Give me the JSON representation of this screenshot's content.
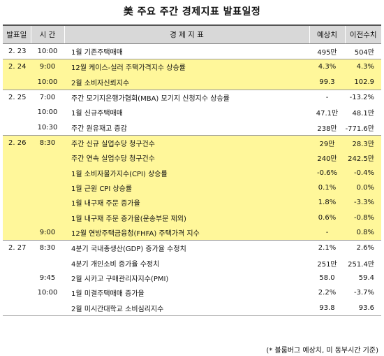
{
  "title": "美 주요 주간 경제지표 발표일정",
  "headers": {
    "date": "발표일",
    "time": "시 간",
    "indicator": "경 제 지 표",
    "expected": "예상치",
    "previous": "이전수치"
  },
  "rows": [
    {
      "date": "2. 23",
      "time": "10:00",
      "indicator": "1월 기존주택매매",
      "expected": "495만",
      "previous": "504만"
    },
    {
      "date": "2. 24",
      "time": "9:00",
      "indicator": "12월 케이스-실러 주택가격지수 상승률",
      "expected": "4.3%",
      "previous": "4.3%"
    },
    {
      "date": "",
      "time": "10:00",
      "indicator": "2월 소비자신뢰지수",
      "expected": "99.3",
      "previous": "102.9"
    },
    {
      "date": "2. 25",
      "time": "7:00",
      "indicator": "주간 모기지은행가협회(MBA) 모기지 신청지수 상승률",
      "expected": "-",
      "previous": "-13.2%"
    },
    {
      "date": "",
      "time": "10:00",
      "indicator": "1월 신규주택매매",
      "expected": "47.1만",
      "previous": "48.1만"
    },
    {
      "date": "",
      "time": "10:30",
      "indicator": "주간 원유재고 증감",
      "expected": "238만",
      "previous": "-771.6만"
    },
    {
      "date": "2. 26",
      "time": "8:30",
      "indicator": "주간 신규 실업수당 청구건수",
      "expected": "29만",
      "previous": "28.3만"
    },
    {
      "date": "",
      "time": "",
      "indicator": "주간 연속 실업수당 청구건수",
      "expected": "240만",
      "previous": "242.5만"
    },
    {
      "date": "",
      "time": "",
      "indicator": "1월 소비자물가지수(CPI) 상승률",
      "expected": "-0.6%",
      "previous": "-0.4%"
    },
    {
      "date": "",
      "time": "",
      "indicator": "1월 근원 CPI 상승률",
      "expected": "0.1%",
      "previous": "0.0%"
    },
    {
      "date": "",
      "time": "",
      "indicator": "1월 내구재 주문 증가율",
      "expected": "1.8%",
      "previous": "-3.3%"
    },
    {
      "date": "",
      "time": "",
      "indicator": "1월 내구재 주문 증가율(운송부문 제외)",
      "expected": "0.6%",
      "previous": "-0.8%"
    },
    {
      "date": "",
      "time": "9:00",
      "indicator": "12월 연방주택금융청(FHFA) 주택가격 지수",
      "expected": "-",
      "previous": "0.8%"
    },
    {
      "date": "2. 27",
      "time": "8:30",
      "indicator": "4분기 국내총생산(GDP) 증가율 수정치",
      "expected": "2.1%",
      "previous": "2.6%"
    },
    {
      "date": "",
      "time": "",
      "indicator": "4분기 개인소비 증가율 수정치",
      "expected": "251만",
      "previous": "251.4만"
    },
    {
      "date": "",
      "time": "9:45",
      "indicator": "2월 시카고 구매관리자지수(PMI)",
      "expected": "58.0",
      "previous": "59.4"
    },
    {
      "date": "",
      "time": "10:00",
      "indicator": "1월 미결주택매매 증가율",
      "expected": "2.2%",
      "previous": "-3.7%"
    },
    {
      "date": "",
      "time": "",
      "indicator": "2월 미시간대학교 소비심리지수",
      "expected": "93.8",
      "previous": "93.6"
    }
  ],
  "note": "(* 블룸버그 예상치, 미 동부시간 기준)",
  "colors": {
    "highlight": "#fff79a",
    "header": "#d8d8d8",
    "plain": "#ffffff"
  }
}
